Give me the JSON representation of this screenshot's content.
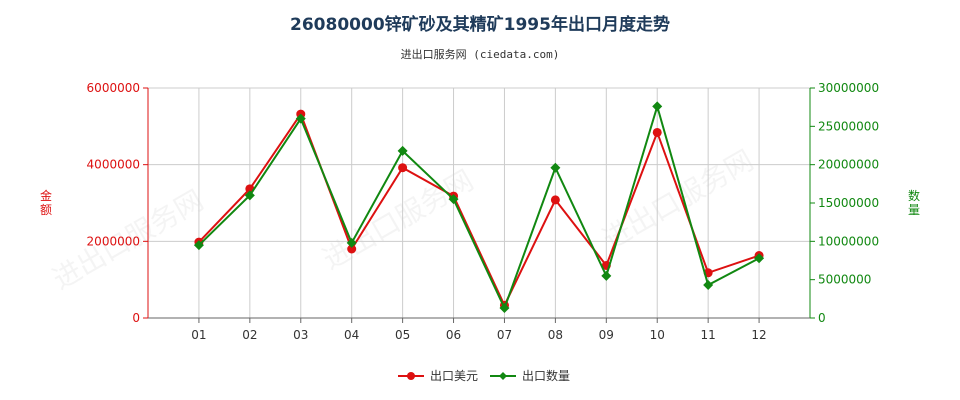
{
  "title": "26080000锌矿砂及其精矿1995年出口月度走势",
  "subtitle": "进出口服务网 (ciedata.com)",
  "colors": {
    "left": "#dd1111",
    "right": "#118811",
    "grid": "#cccccc"
  },
  "chart_data": {
    "type": "line",
    "categories": [
      "01",
      "02",
      "03",
      "04",
      "05",
      "06",
      "07",
      "08",
      "09",
      "10",
      "11",
      "12"
    ],
    "y_left": {
      "label": "金额",
      "ticks": [
        "0",
        "2000000",
        "4000000",
        "6000000"
      ],
      "range": [
        0,
        6000000
      ]
    },
    "y_right": {
      "label": "数量",
      "ticks": [
        "0",
        "5000000",
        "10000000",
        "15000000",
        "20000000",
        "25000000",
        "30000000"
      ],
      "range": [
        0,
        30000000
      ]
    },
    "series": [
      {
        "name": "出口美元",
        "axis": "left",
        "color": "#dd1111",
        "values": [
          1980000,
          3370000,
          5320000,
          1800000,
          3920000,
          3180000,
          330000,
          3080000,
          1370000,
          4840000,
          1180000,
          1630000
        ]
      },
      {
        "name": "出口数量",
        "axis": "right",
        "color": "#118811",
        "values": [
          9500000,
          16000000,
          26000000,
          9800000,
          21800000,
          15500000,
          1300000,
          19600000,
          5500000,
          27600000,
          4300000,
          7800000
        ]
      }
    ],
    "grid": true,
    "legend": "bottom-center"
  }
}
